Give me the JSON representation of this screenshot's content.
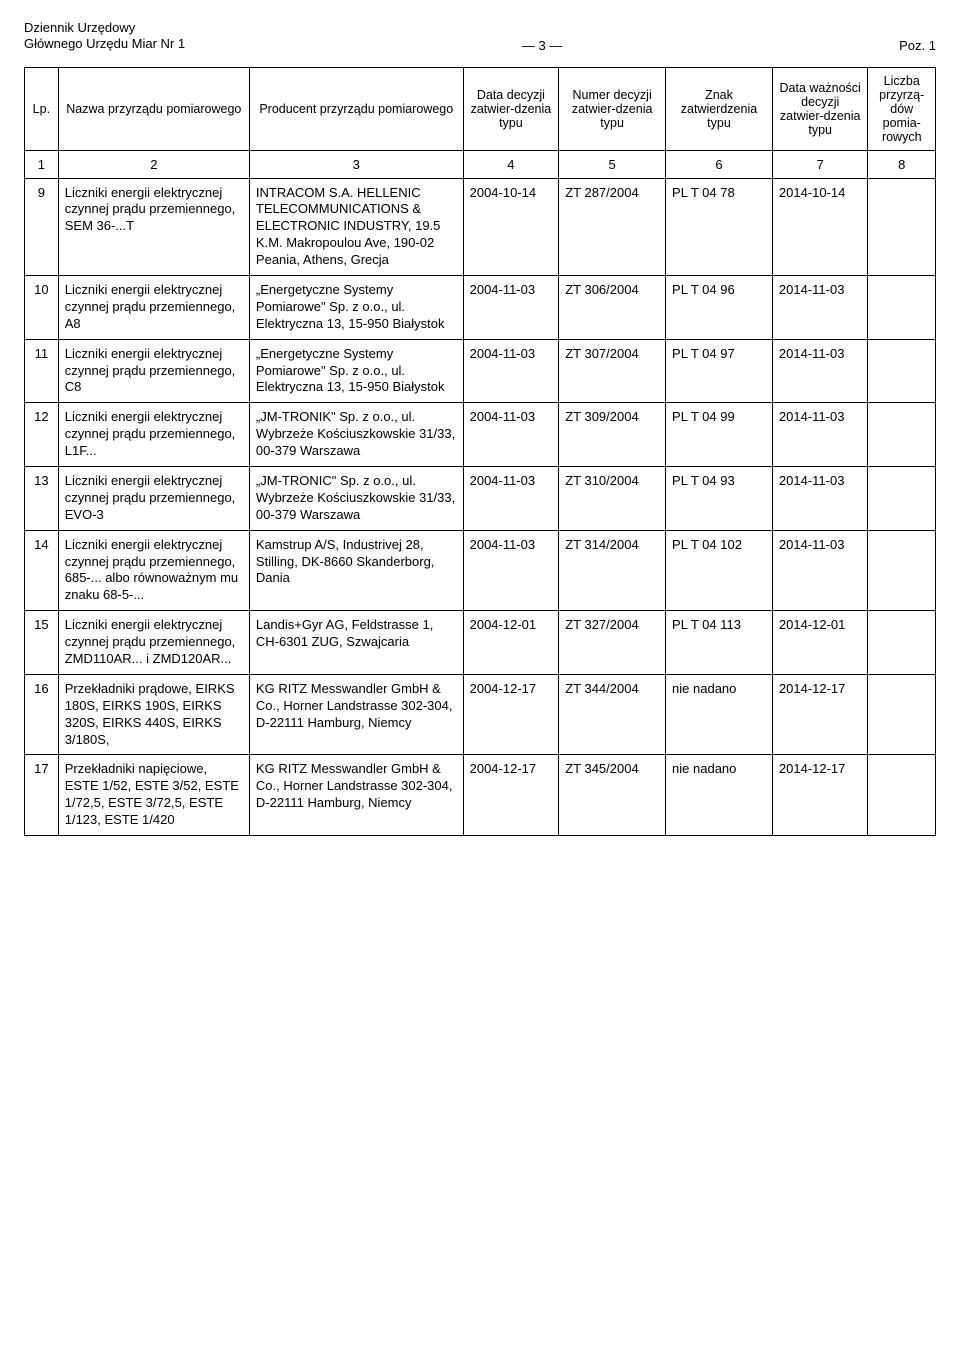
{
  "header": {
    "left_line1": "Dziennik Urzędowy",
    "left_line2": "Głównego Urzędu Miar Nr 1",
    "center": "— 3 —",
    "right": "Poz. 1"
  },
  "columns": {
    "lp": "Lp.",
    "name": "Nazwa przyrządu pomiarowego",
    "producer": "Producent przyrządu pomiarowego",
    "dec_date": "Data decyzji zatwier-dzenia typu",
    "dec_num": "Numer decyzji zatwier-dzenia typu",
    "znak": "Znak zatwierdzenia typu",
    "valid": "Data ważności decyzji zatwier-dzenia typu",
    "count": "Liczba przyrzą-dów pomia-rowych"
  },
  "numrow": {
    "c1": "1",
    "c2": "2",
    "c3": "3",
    "c4": "4",
    "c5": "5",
    "c6": "6",
    "c7": "7",
    "c8": "8"
  },
  "rows": [
    {
      "lp": "9",
      "name": "Liczniki energii elektrycznej czynnej prądu przemiennego, SEM 36-...T",
      "producer": "INTRACOM S.A. HELLENIC TELECOMMUNICATIONS & ELECTRONIC INDUSTRY, 19.5 K.M. Makropoulou Ave, 190-02 Peania, Athens, Grecja",
      "dec_date": "2004-10-14",
      "dec_num": "ZT 287/2004",
      "znak": "PL T 04 78",
      "valid": "2014-10-14",
      "count": ""
    },
    {
      "lp": "10",
      "name": "Liczniki energii elektrycznej czynnej prądu przemiennego, A8",
      "producer": "„Energetyczne Systemy Pomiarowe\" Sp. z o.o., ul. Elektryczna 13, 15-950 Białystok",
      "dec_date": "2004-11-03",
      "dec_num": "ZT 306/2004",
      "znak": "PL T 04 96",
      "valid": "2014-11-03",
      "count": ""
    },
    {
      "lp": "11",
      "name": "Liczniki energii elektrycznej czynnej prądu przemiennego, C8",
      "producer": "„Energetyczne Systemy Pomiarowe\" Sp. z o.o., ul. Elektryczna 13, 15-950 Białystok",
      "dec_date": "2004-11-03",
      "dec_num": "ZT 307/2004",
      "znak": "PL T 04 97",
      "valid": "2014-11-03",
      "count": ""
    },
    {
      "lp": "12",
      "name": "Liczniki energii elektrycznej czynnej prądu przemiennego, L1F...",
      "producer": "„JM-TRONIK\" Sp. z o.o., ul. Wybrzeże Kościuszkowskie 31/33, 00-379 Warszawa",
      "dec_date": "2004-11-03",
      "dec_num": "ZT 309/2004",
      "znak": "PL T 04 99",
      "valid": "2014-11-03",
      "count": ""
    },
    {
      "lp": "13",
      "name": "Liczniki energii elektrycznej czynnej prądu przemiennego, EVO-3",
      "producer": "„JM-TRONIC\" Sp. z o.o., ul. Wybrzeże Kościuszkowskie 31/33, 00-379 Warszawa",
      "dec_date": "2004-11-03",
      "dec_num": "ZT 310/2004",
      "znak": "PL T 04 93",
      "valid": "2014-11-03",
      "count": ""
    },
    {
      "lp": "14",
      "name": "Liczniki energii elektrycznej czynnej prądu przemiennego, 685-... albo równoważnym mu znaku 68-5-...",
      "producer": "Kamstrup A/S, Industrivej 28, Stilling, DK-8660 Skanderborg, Dania",
      "dec_date": "2004-11-03",
      "dec_num": "ZT 314/2004",
      "znak": "PL T 04 102",
      "valid": "2014-11-03",
      "count": ""
    },
    {
      "lp": "15",
      "name": "Liczniki energii elektrycznej czynnej prądu przemiennego, ZMD110AR... i ZMD120AR...",
      "producer": "Landis+Gyr AG, Feldstrasse 1, CH-6301 ZUG, Szwajcaria",
      "dec_date": "2004-12-01",
      "dec_num": "ZT 327/2004",
      "znak": "PL T 04 113",
      "valid": "2014-12-01",
      "count": ""
    },
    {
      "lp": "16",
      "name": "Przekładniki prądowe, EIRKS 180S, EIRKS 190S, EIRKS 320S, EIRKS 440S, EIRKS 3/180S,",
      "producer": "KG RITZ Messwandler GmbH & Co., Horner Landstrasse 302-304, D-22111 Hamburg, Niemcy",
      "dec_date": "2004-12-17",
      "dec_num": "ZT 344/2004",
      "znak": "nie nadano",
      "valid": "2014-12-17",
      "count": ""
    },
    {
      "lp": "17",
      "name": "Przekładniki napięciowe, ESTE 1/52, ESTE 3/52, ESTE 1/72,5, ESTE 3/72,5, ESTE 1/123, ESTE 1/420",
      "producer": "KG RITZ Messwandler GmbH & Co., Horner Landstrasse 302-304, D-22111 Hamburg, Niemcy",
      "dec_date": "2004-12-17",
      "dec_num": "ZT 345/2004",
      "znak": "nie nadano",
      "valid": "2014-12-17",
      "count": ""
    }
  ]
}
